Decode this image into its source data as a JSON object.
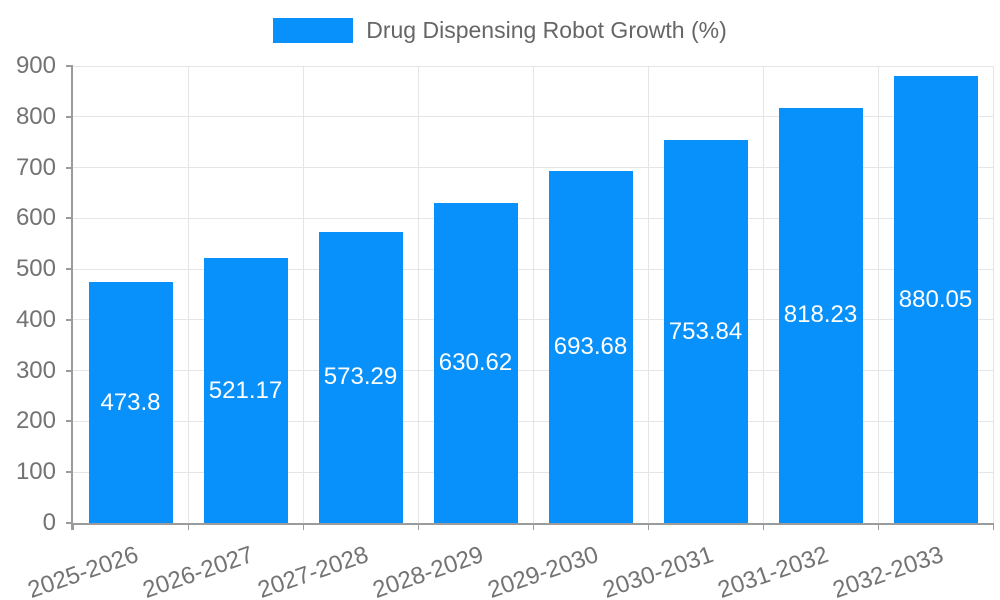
{
  "chart_data": {
    "type": "bar",
    "title": "Drug Dispensing Robot Growth (%)",
    "legend": {
      "position": "top",
      "entries": [
        "Drug Dispensing Robot Growth (%)"
      ]
    },
    "categories": [
      "2025-2026",
      "2026-2027",
      "2027-2028",
      "2028-2029",
      "2029-2030",
      "2030-2031",
      "2031-2032",
      "2032-2033"
    ],
    "values": [
      473.8,
      521.17,
      573.29,
      630.62,
      693.68,
      753.84,
      818.23,
      880.05
    ],
    "value_labels": [
      "473.8",
      "521.17",
      "573.29",
      "630.62",
      "693.68",
      "753.84",
      "818.23",
      "880.05"
    ],
    "xlabel": "",
    "ylabel": "",
    "ylim": [
      0,
      900
    ],
    "yticks": [
      0,
      100,
      200,
      300,
      400,
      500,
      600,
      700,
      800,
      900
    ],
    "grid": true,
    "x_tick_rotation_deg": -19,
    "colors": {
      "bar": "#0991fb",
      "grid": "#e5e5e5",
      "axis": "#9b9b9b",
      "tick_text": "#737373",
      "title_text": "#666666",
      "bar_label": "#ffffff"
    }
  }
}
